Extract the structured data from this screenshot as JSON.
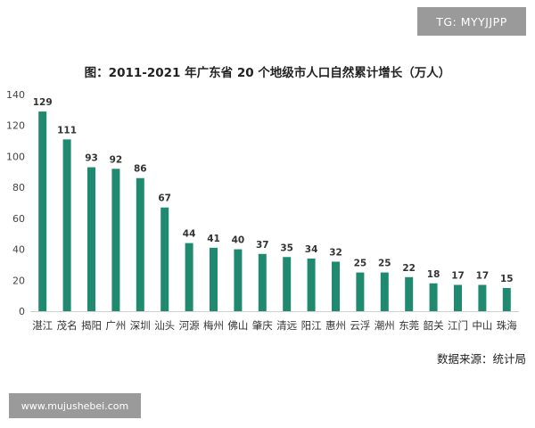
{
  "watermark": "TG: MYYJJPP",
  "website": "www.mujushebei.com",
  "source": "数据来源：统计局",
  "chart_data": {
    "type": "bar",
    "title": "图：2011-2021 年广东省 20 个地级市人口自然累计增长（万人）",
    "xlabel": "",
    "ylabel": "",
    "ylim": [
      0,
      140
    ],
    "yticks": [
      0,
      20,
      40,
      60,
      80,
      100,
      120,
      140
    ],
    "grid": false,
    "color": "#1f8a70",
    "categories": [
      "湛江",
      "茂名",
      "揭阳",
      "广州",
      "深圳",
      "汕头",
      "河源",
      "梅州",
      "佛山",
      "肇庆",
      "清远",
      "阳江",
      "惠州",
      "云浮",
      "潮州",
      "东莞",
      "韶关",
      "江门",
      "中山",
      "珠海"
    ],
    "values": [
      129,
      111,
      93,
      92,
      86,
      67,
      44,
      41,
      40,
      37,
      35,
      34,
      32,
      25,
      25,
      22,
      18,
      17,
      17,
      15
    ]
  }
}
